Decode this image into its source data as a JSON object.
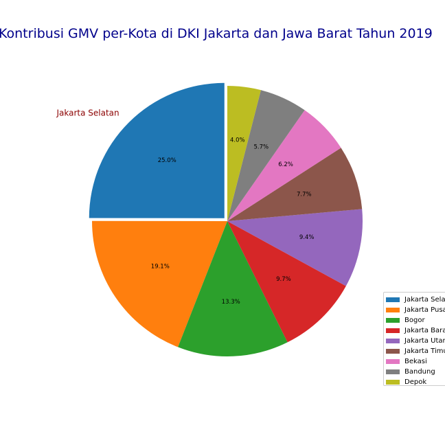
{
  "chart_data": {
    "type": "pie",
    "title": "Kontribusi GMV per-Kota di DKI Jakarta dan Jawa Barat Tahun 2019",
    "categories": [
      "Jakarta Selatan",
      "Jakarta Pusat",
      "Bogor",
      "Jakarta Barat",
      "Jakarta Utara",
      "Jakarta Timur",
      "Bekasi",
      "Bandung",
      "Depok"
    ],
    "values": [
      25.0,
      19.1,
      13.3,
      9.7,
      9.4,
      7.7,
      6.2,
      5.7,
      4.0
    ],
    "value_labels": [
      "25.0%",
      "19.1%",
      "13.3%",
      "9.7%",
      "9.4%",
      "7.7%",
      "6.2%",
      "5.7%",
      "4.0%"
    ],
    "colors": [
      "#1f77b4",
      "#ff7f0e",
      "#2ca02c",
      "#d62728",
      "#9467bd",
      "#8c564b",
      "#e377c2",
      "#7f7f7f",
      "#bcbd22"
    ],
    "exploded": [
      true,
      false,
      false,
      false,
      false,
      false,
      false,
      false,
      false
    ],
    "outer_labels": [
      "Jakarta Selatan",
      "",
      "",
      "",
      "",
      "",
      "",
      "",
      ""
    ],
    "outer_label_color": "#8b0000",
    "title_color": "#00008b",
    "start_angle": 90,
    "direction": "counterclockwise",
    "legend_position": "lower-right"
  }
}
